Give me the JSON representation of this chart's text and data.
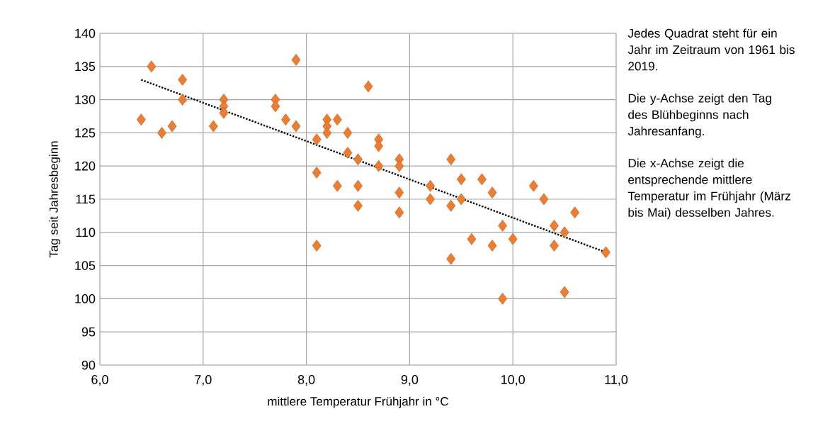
{
  "chart_data": {
    "type": "scatter",
    "xlabel": "mittlere Temperatur Frühjahr in °C",
    "ylabel": "Tag seit Jahresbeginn",
    "xlim": [
      6,
      11
    ],
    "ylim": [
      90,
      140
    ],
    "xticks": [
      {
        "value": 6,
        "label": "6,0"
      },
      {
        "value": 7,
        "label": "7,0"
      },
      {
        "value": 8,
        "label": "8,0"
      },
      {
        "value": 9,
        "label": "9,0"
      },
      {
        "value": 10,
        "label": "10,0"
      },
      {
        "value": 11,
        "label": "11,0"
      }
    ],
    "yticks": [
      90,
      95,
      100,
      105,
      110,
      115,
      120,
      125,
      130,
      135,
      140
    ],
    "grid": true,
    "annotations": [
      "Jedes Quadrat steht für ein Jahr im Zeitraum von 1961 bis 2019.",
      "Die y-Achse zeigt den Tag des Blühbeginns nach Jahresanfang.",
      "Die x-Achse zeigt die entsprechende mittlere Temperatur im Frühjahr (März bis Mai) desselben Jahres."
    ],
    "series": [
      {
        "type": "scatter",
        "color": "#ed7d31",
        "marker": "diamond",
        "x": [
          6.4,
          6.5,
          6.6,
          6.7,
          6.8,
          6.8,
          7.1,
          7.2,
          7.2,
          7.2,
          7.7,
          7.7,
          7.8,
          7.9,
          7.9,
          8.1,
          8.1,
          8.1,
          8.2,
          8.2,
          8.2,
          8.3,
          8.3,
          8.4,
          8.4,
          8.5,
          8.5,
          8.5,
          8.6,
          8.7,
          8.7,
          8.7,
          8.9,
          8.9,
          8.9,
          8.9,
          9.2,
          9.2,
          9.4,
          9.4,
          9.4,
          9.5,
          9.5,
          9.6,
          9.7,
          9.8,
          9.8,
          9.9,
          9.9,
          10.0,
          10.2,
          10.3,
          10.4,
          10.4,
          10.5,
          10.5,
          10.6,
          10.9
        ],
        "values": [
          127,
          135,
          125,
          126,
          133,
          130,
          126,
          130,
          129,
          128,
          130,
          129,
          127,
          136,
          126,
          124,
          119,
          108,
          127,
          126,
          125,
          127,
          117,
          125,
          122,
          121,
          117,
          114,
          132,
          124,
          123,
          120,
          121,
          120,
          116,
          113,
          117,
          115,
          121,
          114,
          106,
          118,
          115,
          109,
          118,
          116,
          108,
          111,
          100,
          109,
          117,
          115,
          111,
          108,
          110,
          101,
          113,
          107
        ]
      },
      {
        "type": "line",
        "color": "#000000",
        "marker": "none",
        "line_style": "dotted",
        "x": [
          6.4,
          10.9
        ],
        "values": [
          133,
          107
        ]
      }
    ]
  }
}
